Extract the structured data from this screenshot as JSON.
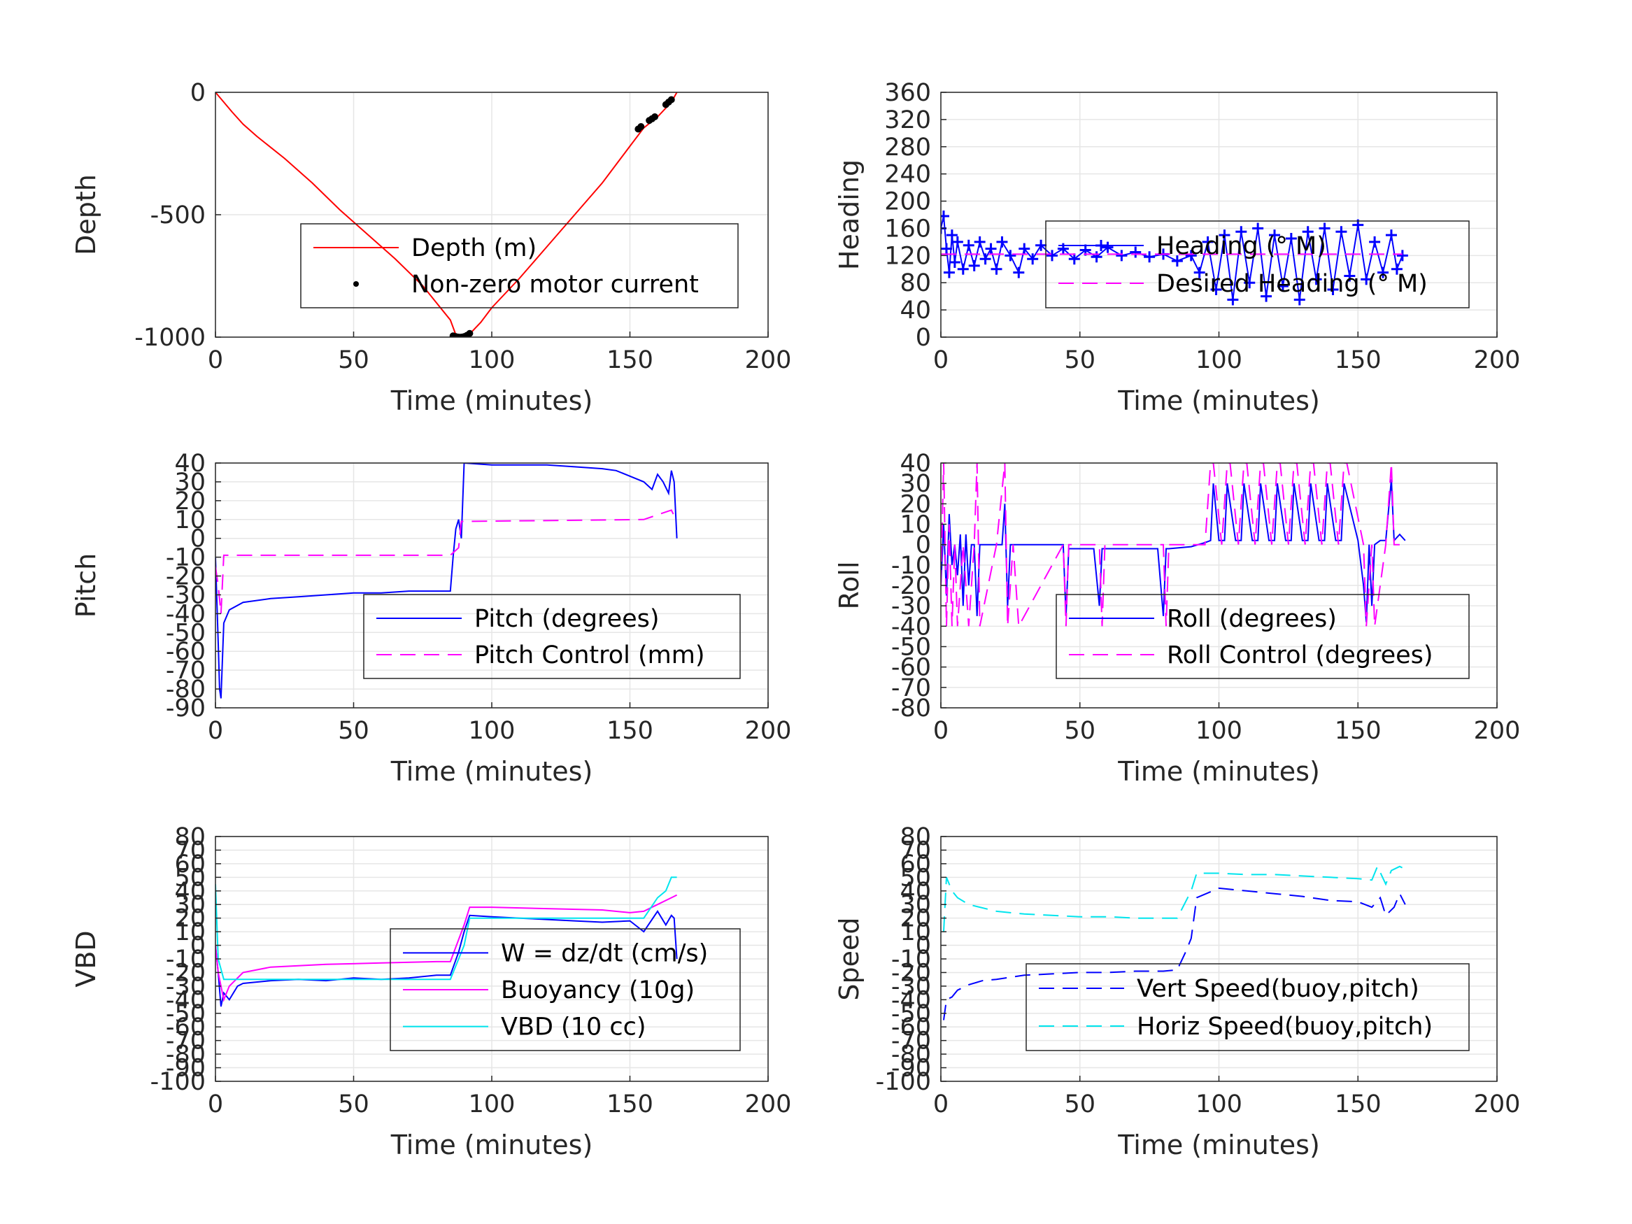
{
  "chart_data": [
    {
      "type": "line",
      "xlabel": "Time (minutes)",
      "ylabel": "Depth",
      "xlim": [
        0,
        200
      ],
      "ylim": [
        -1000,
        0
      ],
      "xticks": [
        0,
        50,
        100,
        150,
        200
      ],
      "yticks": [
        -1000,
        -500,
        0
      ],
      "grid": true,
      "legend": "inside-right",
      "series": [
        {
          "name": "Depth (m)",
          "color": "#ff0000",
          "style": "solid",
          "x": [
            0,
            3,
            6,
            10,
            15,
            25,
            35,
            45,
            55,
            65,
            75,
            80,
            85,
            87,
            89,
            91,
            93,
            96,
            100,
            110,
            120,
            130,
            140,
            150,
            155,
            160,
            165,
            167
          ],
          "y": [
            0,
            -40,
            -80,
            -130,
            -180,
            -270,
            -370,
            -480,
            -580,
            -680,
            -790,
            -860,
            -930,
            -990,
            -1000,
            -990,
            -975,
            -940,
            -880,
            -760,
            -630,
            -500,
            -370,
            -220,
            -145,
            -100,
            -40,
            0
          ]
        },
        {
          "name": "Non-zero motor current",
          "color": "#000000",
          "style": "points",
          "x": [
            86,
            87,
            88,
            89,
            90,
            91,
            92,
            153,
            154,
            157,
            158,
            159,
            163,
            164,
            165
          ],
          "y": [
            -995,
            -998,
            -1000,
            -1000,
            -998,
            -993,
            -985,
            -150,
            -140,
            -115,
            -108,
            -100,
            -50,
            -40,
            -30
          ]
        }
      ]
    },
    {
      "type": "line",
      "xlabel": "Time (minutes)",
      "ylabel": "Heading",
      "xlim": [
        0,
        200
      ],
      "ylim": [
        0,
        360
      ],
      "xticks": [
        0,
        50,
        100,
        150,
        200
      ],
      "yticks": [
        0,
        40,
        80,
        120,
        160,
        200,
        240,
        280,
        320,
        360
      ],
      "grid": true,
      "legend": "inside-right",
      "series": [
        {
          "name": "Heading (° M)",
          "color": "#0000ff",
          "style": "plus",
          "x": [
            0,
            1,
            2,
            3,
            4,
            5,
            6,
            8,
            10,
            12,
            14,
            16,
            18,
            20,
            22,
            25,
            28,
            30,
            33,
            36,
            40,
            44,
            48,
            52,
            56,
            60,
            65,
            70,
            75,
            80,
            85,
            90,
            93,
            96,
            99,
            102,
            105,
            108,
            111,
            114,
            117,
            120,
            123,
            126,
            129,
            132,
            135,
            138,
            141,
            144,
            147,
            150,
            153,
            156,
            159,
            162,
            164,
            166
          ],
          "y": [
            160,
            178,
            130,
            95,
            150,
            110,
            140,
            100,
            135,
            105,
            140,
            115,
            130,
            100,
            140,
            120,
            95,
            130,
            115,
            135,
            120,
            130,
            115,
            128,
            118,
            132,
            120,
            125,
            118,
            122,
            112,
            120,
            95,
            140,
            70,
            150,
            55,
            155,
            80,
            160,
            60,
            150,
            75,
            145,
            55,
            155,
            85,
            160,
            70,
            155,
            90,
            165,
            85,
            140,
            95,
            150,
            100,
            120
          ]
        },
        {
          "name": "Desired Heading (° M)",
          "color": "#ff00ff",
          "style": "dashed",
          "x": [
            0,
            166
          ],
          "y": [
            122,
            122
          ]
        }
      ]
    },
    {
      "type": "line",
      "xlabel": "Time (minutes)",
      "ylabel": "Pitch",
      "xlim": [
        0,
        200
      ],
      "ylim": [
        -90,
        40
      ],
      "xticks": [
        0,
        50,
        100,
        150,
        200
      ],
      "yticks": [
        -90,
        -80,
        -70,
        -60,
        -50,
        -40,
        -30,
        -20,
        -10,
        0,
        10,
        20,
        30,
        40
      ],
      "grid": true,
      "legend": "inside-right",
      "series": [
        {
          "name": "Pitch (degrees)",
          "color": "#0000ff",
          "style": "solid",
          "x": [
            0,
            1,
            1.5,
            2,
            3,
            5,
            10,
            20,
            30,
            40,
            50,
            60,
            70,
            80,
            85,
            86,
            87,
            88,
            89,
            90,
            100,
            110,
            120,
            130,
            140,
            145,
            150,
            155,
            158,
            160,
            162,
            164,
            165,
            166,
            167
          ],
          "y": [
            -10,
            -55,
            -80,
            -85,
            -45,
            -38,
            -34,
            -32,
            -31,
            -30,
            -29,
            -29,
            -28,
            -28,
            -28,
            -10,
            5,
            10,
            0,
            40,
            39,
            39,
            39,
            38,
            37,
            36,
            33,
            30,
            26,
            34,
            30,
            24,
            36,
            30,
            0
          ]
        },
        {
          "name": "Pitch Control (mm)",
          "color": "#ff00ff",
          "style": "dashed",
          "x": [
            0,
            1,
            2,
            3,
            5,
            85,
            88,
            89,
            90,
            155,
            165,
            166,
            167
          ],
          "y": [
            -15,
            -25,
            -40,
            -9,
            -9,
            -9,
            -5,
            9,
            9,
            10,
            15,
            12,
            12
          ]
        }
      ]
    },
    {
      "type": "line",
      "xlabel": "Time (minutes)",
      "ylabel": "Roll",
      "xlim": [
        0,
        200
      ],
      "ylim": [
        -80,
        40
      ],
      "xticks": [
        0,
        50,
        100,
        150,
        200
      ],
      "yticks": [
        -80,
        -70,
        -60,
        -50,
        -40,
        -30,
        -20,
        -10,
        0,
        10,
        20,
        30,
        40
      ],
      "grid": true,
      "legend": "inside-right",
      "series": [
        {
          "name": "Roll (degrees)",
          "color": "#0000ff",
          "style": "solid",
          "x": [
            0,
            1,
            2,
            3,
            4,
            5,
            6,
            7,
            8,
            9,
            10,
            11,
            12,
            13,
            14,
            15,
            20,
            22,
            23,
            24,
            25,
            26,
            27,
            40,
            44,
            45,
            46,
            55,
            57,
            58,
            59,
            78,
            80,
            81,
            82,
            90,
            95,
            97,
            98,
            100,
            102,
            103,
            106,
            108,
            109,
            112,
            114,
            115,
            118,
            120,
            121,
            124,
            126,
            127,
            130,
            132,
            133,
            136,
            138,
            139,
            142,
            144,
            145,
            150,
            152,
            153,
            154,
            155,
            156,
            158,
            160,
            162,
            163,
            165,
            167
          ],
          "y": [
            -20,
            10,
            -25,
            15,
            -10,
            0,
            -15,
            5,
            -30,
            5,
            -20,
            0,
            0,
            -35,
            0,
            0,
            0,
            0,
            20,
            -30,
            0,
            0,
            0,
            0,
            0,
            -35,
            -2,
            -2,
            -30,
            -2,
            -2,
            -2,
            -35,
            -2,
            -2,
            -1,
            1,
            2,
            30,
            2,
            2,
            30,
            2,
            2,
            30,
            2,
            2,
            30,
            2,
            2,
            30,
            2,
            2,
            30,
            2,
            2,
            30,
            2,
            2,
            30,
            2,
            2,
            30,
            2,
            -20,
            -38,
            0,
            -30,
            0,
            2,
            2,
            32,
            2,
            5,
            2
          ]
        },
        {
          "name": "Roll Control (degrees)",
          "color": "#ff00ff",
          "style": "dashed",
          "x": [
            0,
            1,
            2,
            3,
            4,
            5,
            6,
            8,
            10,
            12,
            13,
            14,
            20,
            23,
            24,
            26,
            28,
            44,
            45,
            46,
            57,
            58,
            59,
            80,
            81,
            82,
            95,
            97,
            98,
            101,
            103,
            104,
            107,
            109,
            110,
            113,
            115,
            116,
            119,
            121,
            122,
            125,
            127,
            128,
            131,
            133,
            134,
            137,
            139,
            140,
            143,
            145,
            146,
            152,
            153,
            155,
            156,
            160,
            162,
            163,
            165
          ],
          "y": [
            -20,
            40,
            -40,
            10,
            -40,
            0,
            -40,
            0,
            -40,
            0,
            40,
            -40,
            0,
            40,
            -40,
            0,
            -40,
            0,
            -40,
            0,
            0,
            -40,
            0,
            0,
            -40,
            0,
            0,
            40,
            40,
            0,
            40,
            40,
            0,
            40,
            40,
            0,
            40,
            40,
            0,
            40,
            40,
            0,
            40,
            40,
            0,
            40,
            40,
            0,
            40,
            40,
            0,
            40,
            40,
            0,
            -40,
            0,
            -40,
            0,
            40,
            0,
            0
          ]
        }
      ]
    },
    {
      "type": "line",
      "xlabel": "Time (minutes)",
      "ylabel": "VBD",
      "xlim": [
        0,
        200
      ],
      "ylim": [
        -100,
        80
      ],
      "xticks": [
        0,
        50,
        100,
        150,
        200
      ],
      "yticks": [
        -100,
        -90,
        -80,
        -70,
        -60,
        -50,
        -40,
        -30,
        -20,
        -10,
        0,
        10,
        20,
        30,
        40,
        50,
        60,
        70,
        80
      ],
      "grid": true,
      "legend": "inside-right",
      "series": [
        {
          "name": "W = dz/dt (cm/s)",
          "color": "#0000ff",
          "style": "solid",
          "x": [
            0,
            1,
            2,
            3,
            5,
            8,
            10,
            20,
            30,
            40,
            50,
            60,
            70,
            80,
            85,
            88,
            90,
            92,
            100,
            110,
            120,
            130,
            140,
            150,
            155,
            160,
            163,
            165,
            166,
            167
          ],
          "y": [
            0,
            -20,
            -45,
            -35,
            -40,
            -30,
            -28,
            -26,
            -25,
            -26,
            -24,
            -25,
            -24,
            -22,
            -22,
            -5,
            10,
            22,
            21,
            20,
            19,
            18,
            17,
            18,
            10,
            25,
            15,
            22,
            20,
            -10
          ]
        },
        {
          "name": "Buoyancy (10g)",
          "color": "#ff00ff",
          "style": "solid",
          "x": [
            0,
            1,
            3,
            5,
            10,
            20,
            40,
            60,
            80,
            85,
            90,
            92,
            100,
            120,
            140,
            150,
            155,
            160,
            165,
            167
          ],
          "y": [
            0,
            -20,
            -40,
            -30,
            -20,
            -16,
            -14,
            -13,
            -12,
            -12,
            15,
            28,
            28,
            27,
            26,
            24,
            25,
            30,
            35,
            37
          ]
        },
        {
          "name": "VBD (10 cc)",
          "color": "#00e5ee",
          "style": "solid",
          "x": [
            0,
            1,
            3,
            5,
            10,
            30,
            60,
            85,
            90,
            92,
            100,
            120,
            140,
            150,
            155,
            160,
            163,
            165,
            167
          ],
          "y": [
            45,
            -10,
            -25,
            -25,
            -25,
            -25,
            -25,
            -25,
            0,
            20,
            20,
            20,
            20,
            20,
            20,
            35,
            40,
            50,
            50
          ]
        }
      ]
    },
    {
      "type": "line",
      "xlabel": "Time (minutes)",
      "ylabel": "Speed",
      "xlim": [
        0,
        200
      ],
      "ylim": [
        -100,
        80
      ],
      "xticks": [
        0,
        50,
        100,
        150,
        200
      ],
      "yticks": [
        -100,
        -90,
        -80,
        -70,
        -60,
        -50,
        -40,
        -30,
        -20,
        -10,
        0,
        10,
        20,
        30,
        40,
        50,
        60,
        70,
        80
      ],
      "grid": true,
      "legend": "inside-right",
      "series": [
        {
          "name": "Vert Speed(buoy,pitch)",
          "color": "#0000ff",
          "style": "dashed",
          "x": [
            1,
            2,
            4,
            6,
            10,
            15,
            20,
            30,
            40,
            50,
            60,
            70,
            80,
            85,
            88,
            90,
            92,
            100,
            110,
            120,
            130,
            140,
            150,
            155,
            158,
            160,
            163,
            165,
            167
          ],
          "y": [
            -55,
            -40,
            -38,
            -33,
            -29,
            -26,
            -25,
            -22,
            -21,
            -20,
            -20,
            -19,
            -19,
            -18,
            -5,
            5,
            35,
            42,
            40,
            38,
            36,
            33,
            32,
            28,
            35,
            22,
            28,
            38,
            30
          ]
        },
        {
          "name": "Horiz Speed(buoy,pitch)",
          "color": "#00e5ee",
          "style": "dashed",
          "x": [
            1,
            2,
            4,
            6,
            10,
            20,
            30,
            40,
            50,
            60,
            70,
            80,
            85,
            90,
            92,
            100,
            110,
            120,
            130,
            140,
            150,
            155,
            157,
            160,
            162,
            165,
            167
          ],
          "y": [
            10,
            50,
            40,
            35,
            30,
            25,
            23,
            22,
            21,
            21,
            20,
            20,
            20,
            40,
            53,
            53,
            52,
            52,
            51,
            50,
            49,
            48,
            58,
            45,
            55,
            58,
            56
          ]
        }
      ]
    }
  ]
}
